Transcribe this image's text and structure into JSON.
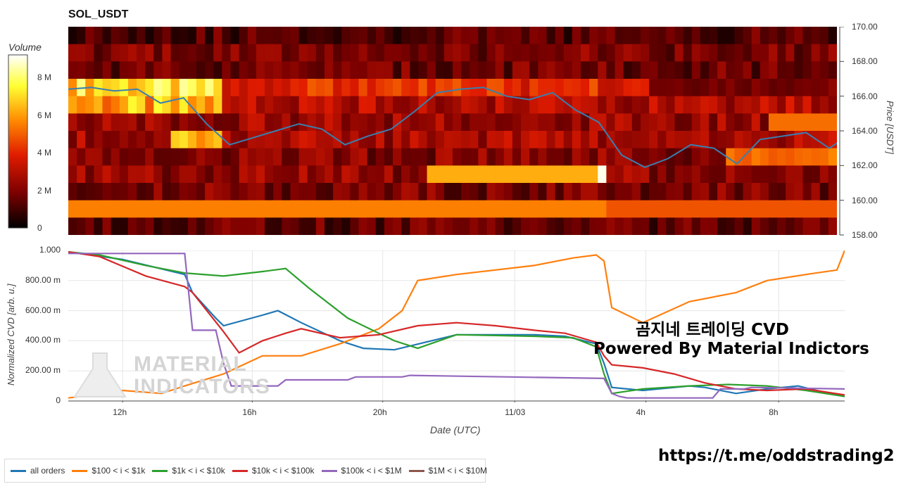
{
  "chart_data": [
    {
      "type": "heatmap",
      "title": "SOL_USDT",
      "colorbar": {
        "label": "Volume",
        "ticks": [
          "8 M",
          "6 M",
          "4 M",
          "2 M",
          "0"
        ],
        "tick_values": [
          8,
          6,
          4,
          2,
          0
        ],
        "range": [
          0,
          9.2
        ],
        "colors": [
          "#000000",
          "#7a0000",
          "#e01b00",
          "#ff8a00",
          "#ffff33",
          "#ffffff"
        ]
      },
      "price_axis": {
        "label": "Price [USDT]",
        "ticks": [
          "170.00",
          "168.00",
          "166.00",
          "164.00",
          "162.00",
          "160.00",
          "158.00"
        ],
        "tick_values": [
          170,
          168,
          166,
          164,
          162,
          160,
          158
        ],
        "range": [
          158,
          170
        ]
      },
      "price_series": {
        "t": [
          0,
          0.03,
          0.06,
          0.09,
          0.12,
          0.15,
          0.18,
          0.21,
          0.24,
          0.27,
          0.3,
          0.33,
          0.36,
          0.39,
          0.42,
          0.45,
          0.48,
          0.51,
          0.54,
          0.57,
          0.6,
          0.63,
          0.66,
          0.69,
          0.72,
          0.75,
          0.78,
          0.81,
          0.84,
          0.87,
          0.9,
          0.93,
          0.96,
          0.99,
          1
        ],
        "price": [
          166.4,
          166.5,
          166.3,
          166.4,
          165.6,
          165.9,
          164.4,
          163.2,
          163.6,
          164.0,
          164.4,
          164.1,
          163.2,
          163.7,
          164.1,
          165.1,
          166.2,
          166.4,
          166.5,
          166.0,
          165.8,
          166.2,
          165.2,
          164.5,
          162.6,
          161.9,
          162.4,
          163.2,
          163.0,
          162.1,
          163.5,
          163.7,
          163.9,
          163.0,
          163.3
        ]
      }
    },
    {
      "type": "line",
      "ylabel": "Normalized CVD [arb. u.]",
      "xlabel": "Date (UTC)",
      "y_ticks": [
        "1.000",
        "800.00 m",
        "600.00 m",
        "400.00 m",
        "200.00 m",
        "0"
      ],
      "y_tick_values": [
        1.0,
        0.8,
        0.6,
        0.4,
        0.2,
        0
      ],
      "ylim": [
        0,
        1.0
      ],
      "x_ticks": [
        "12h",
        "16h",
        "20h",
        "11/03",
        "4h",
        "8h"
      ],
      "x_tick_values": [
        0.07,
        0.237,
        0.405,
        0.575,
        0.744,
        0.915
      ],
      "series": [
        {
          "name": "all orders",
          "color": "#1f77b4",
          "t": [
            0,
            0.07,
            0.15,
            0.16,
            0.19,
            0.2,
            0.25,
            0.27,
            0.3,
            0.35,
            0.38,
            0.42,
            0.5,
            0.6,
            0.64,
            0.68,
            0.69,
            0.7,
            0.74,
            0.8,
            0.82,
            0.86,
            0.9,
            0.94,
            0.98,
            1
          ],
          "values": [
            0.99,
            0.94,
            0.84,
            0.72,
            0.55,
            0.5,
            0.57,
            0.6,
            0.52,
            0.4,
            0.35,
            0.34,
            0.44,
            0.44,
            0.43,
            0.38,
            0.25,
            0.09,
            0.07,
            0.1,
            0.09,
            0.05,
            0.08,
            0.1,
            0.05,
            0.03
          ]
        },
        {
          "name": "$100 < i < $1k",
          "color": "#ff7f0e",
          "t": [
            0,
            0.03,
            0.07,
            0.12,
            0.15,
            0.2,
            0.25,
            0.27,
            0.3,
            0.35,
            0.4,
            0.43,
            0.45,
            0.5,
            0.6,
            0.65,
            0.68,
            0.69,
            0.7,
            0.74,
            0.8,
            0.86,
            0.9,
            0.95,
            0.99,
            1
          ],
          "values": [
            0.02,
            0.04,
            0.07,
            0.05,
            0.1,
            0.18,
            0.3,
            0.3,
            0.3,
            0.38,
            0.48,
            0.6,
            0.8,
            0.84,
            0.9,
            0.95,
            0.97,
            0.93,
            0.62,
            0.52,
            0.66,
            0.72,
            0.8,
            0.84,
            0.87,
            1.0
          ]
        },
        {
          "name": "$1k < i < $10k",
          "color": "#2ca02c",
          "t": [
            0,
            0.04,
            0.1,
            0.15,
            0.2,
            0.25,
            0.28,
            0.31,
            0.36,
            0.4,
            0.42,
            0.45,
            0.5,
            0.6,
            0.65,
            0.68,
            0.69,
            0.7,
            0.74,
            0.8,
            0.85,
            0.9,
            0.95,
            1
          ],
          "values": [
            0.99,
            0.97,
            0.9,
            0.85,
            0.83,
            0.86,
            0.88,
            0.75,
            0.55,
            0.45,
            0.4,
            0.35,
            0.44,
            0.43,
            0.42,
            0.36,
            0.18,
            0.05,
            0.08,
            0.1,
            0.11,
            0.1,
            0.07,
            0.03
          ]
        },
        {
          "name": "$10k < i < $100k",
          "color": "#d62728",
          "t": [
            0,
            0.04,
            0.1,
            0.15,
            0.16,
            0.2,
            0.22,
            0.25,
            0.28,
            0.3,
            0.35,
            0.4,
            0.45,
            0.5,
            0.55,
            0.6,
            0.64,
            0.68,
            0.69,
            0.7,
            0.74,
            0.78,
            0.82,
            0.86,
            0.9,
            0.95,
            1
          ],
          "values": [
            0.99,
            0.96,
            0.83,
            0.76,
            0.72,
            0.46,
            0.32,
            0.4,
            0.45,
            0.48,
            0.42,
            0.44,
            0.5,
            0.52,
            0.5,
            0.47,
            0.45,
            0.39,
            0.3,
            0.24,
            0.22,
            0.18,
            0.12,
            0.08,
            0.07,
            0.08,
            0.04
          ]
        },
        {
          "name": "$100k < i < $1M",
          "color": "#9467bd",
          "t": [
            0,
            0.04,
            0.15,
            0.16,
            0.19,
            0.2,
            0.21,
            0.27,
            0.28,
            0.36,
            0.37,
            0.43,
            0.44,
            0.69,
            0.7,
            0.71,
            0.72,
            0.83,
            0.84,
            0.87,
            0.88,
            1
          ],
          "values": [
            0.98,
            0.98,
            0.98,
            0.47,
            0.47,
            0.25,
            0.1,
            0.1,
            0.14,
            0.14,
            0.16,
            0.16,
            0.17,
            0.15,
            0.05,
            0.03,
            0.02,
            0.02,
            0.08,
            0.08,
            0.09,
            0.08
          ]
        },
        {
          "name": "$1M < i < $10M",
          "color": "#8c564b",
          "t": [],
          "values": []
        }
      ]
    }
  ],
  "annotation": {
    "line1": "곰지네 트레이딩 CVD",
    "line2": "Powered By Material Indictors"
  },
  "watermark": {
    "line1": "MATERIAL",
    "line2": "INDICATORS"
  },
  "footer_url": "https://t.me/oddstrading2",
  "legend": [
    {
      "name": "all orders",
      "color": "#1f77b4"
    },
    {
      "name": "$100 < i < $1k",
      "color": "#ff7f0e"
    },
    {
      "name": "$1k < i < $10k",
      "color": "#2ca02c"
    },
    {
      "name": "$10k < i < $100k",
      "color": "#d62728"
    },
    {
      "name": "$100k < i < $1M",
      "color": "#9467bd"
    },
    {
      "name": "$1M < i < $10M",
      "color": "#8c564b"
    }
  ]
}
